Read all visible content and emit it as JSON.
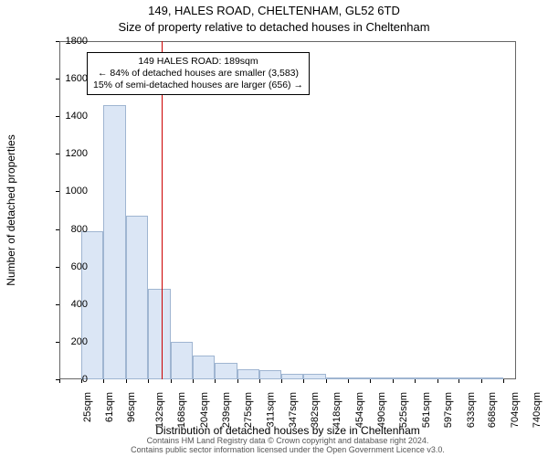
{
  "title_main": "149, HALES ROAD, CHELTENHAM, GL52 6TD",
  "title_sub": "Size of property relative to detached houses in Cheltenham",
  "ylabel": "Number of detached properties",
  "xlabel": "Distribution of detached houses by size in Cheltenham",
  "footer_line1": "Contains HM Land Registry data © Crown copyright and database right 2024.",
  "footer_line2": "Contains public sector information licensed under the Open Government Licence v3.0.",
  "chart": {
    "type": "histogram",
    "background_color": "#ffffff",
    "axis_color": "#666666",
    "bar_fill": "#dbe6f5",
    "bar_stroke": "#9fb5d1",
    "bar_stroke_width": 1,
    "ref_line_color": "#cc0000",
    "ref_value_x": 189,
    "xlim": [
      25,
      760
    ],
    "ylim": [
      0,
      1800
    ],
    "ytick_step": 200,
    "axis_fontsize": 11,
    "label_fontsize": 12,
    "title_fontsize": 13,
    "xticks": [
      25,
      61,
      96,
      132,
      168,
      204,
      239,
      275,
      311,
      347,
      382,
      418,
      454,
      490,
      525,
      561,
      597,
      633,
      668,
      704,
      740
    ],
    "xtick_labels": [
      "25sqm",
      "61sqm",
      "96sqm",
      "132sqm",
      "168sqm",
      "204sqm",
      "239sqm",
      "275sqm",
      "311sqm",
      "347sqm",
      "382sqm",
      "418sqm",
      "454sqm",
      "490sqm",
      "525sqm",
      "561sqm",
      "597sqm",
      "633sqm",
      "668sqm",
      "704sqm",
      "740sqm"
    ],
    "bars": [
      {
        "x0": 25,
        "x1": 61,
        "y": 0
      },
      {
        "x0": 61,
        "x1": 96,
        "y": 790
      },
      {
        "x0": 96,
        "x1": 132,
        "y": 1460
      },
      {
        "x0": 132,
        "x1": 168,
        "y": 870
      },
      {
        "x0": 168,
        "x1": 204,
        "y": 480
      },
      {
        "x0": 204,
        "x1": 239,
        "y": 200
      },
      {
        "x0": 239,
        "x1": 275,
        "y": 125
      },
      {
        "x0": 275,
        "x1": 311,
        "y": 90
      },
      {
        "x0": 311,
        "x1": 347,
        "y": 55
      },
      {
        "x0": 347,
        "x1": 382,
        "y": 50
      },
      {
        "x0": 382,
        "x1": 418,
        "y": 30
      },
      {
        "x0": 418,
        "x1": 454,
        "y": 30
      },
      {
        "x0": 454,
        "x1": 490,
        "y": 10
      },
      {
        "x0": 490,
        "x1": 525,
        "y": 5
      },
      {
        "x0": 525,
        "x1": 561,
        "y": 5
      },
      {
        "x0": 561,
        "x1": 597,
        "y": 5
      },
      {
        "x0": 597,
        "x1": 633,
        "y": 3
      },
      {
        "x0": 633,
        "x1": 668,
        "y": 3
      },
      {
        "x0": 668,
        "x1": 704,
        "y": 3
      },
      {
        "x0": 704,
        "x1": 740,
        "y": 3
      }
    ],
    "annotation": {
      "line1": "149 HALES ROAD: 189sqm",
      "line2": "← 84% of detached houses are smaller (3,583)",
      "line3": "15% of semi-detached houses are larger (656) →",
      "border_color": "#000000",
      "bg_color": "#ffffff",
      "fontsize": 10.5
    }
  }
}
